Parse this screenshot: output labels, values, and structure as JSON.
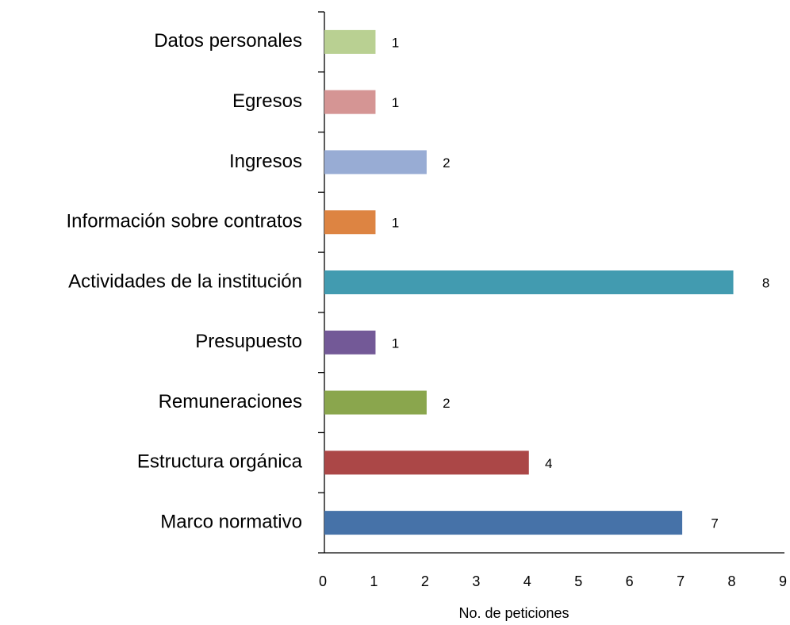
{
  "chart_data": {
    "type": "barh",
    "xlabel": "No. de peticiones",
    "categories": [
      "Datos personales",
      "Egresos",
      "Ingresos",
      "Información sobre contratos",
      "Actividades de la institución",
      "Presupuesto",
      "Remuneraciones",
      "Estructura orgánica",
      "Marco normativo"
    ],
    "values": [
      1,
      1,
      2,
      1,
      8,
      1,
      2,
      4,
      7
    ],
    "colors": [
      "#b9d092",
      "#d59594",
      "#98acd4",
      "#dd8442",
      "#429bb0",
      "#735997",
      "#8aa64d",
      "#ab4747",
      "#4672a8"
    ],
    "xlim": [
      0,
      9
    ],
    "xticks": [
      0,
      1,
      2,
      3,
      4,
      5,
      6,
      7,
      8,
      9
    ]
  }
}
